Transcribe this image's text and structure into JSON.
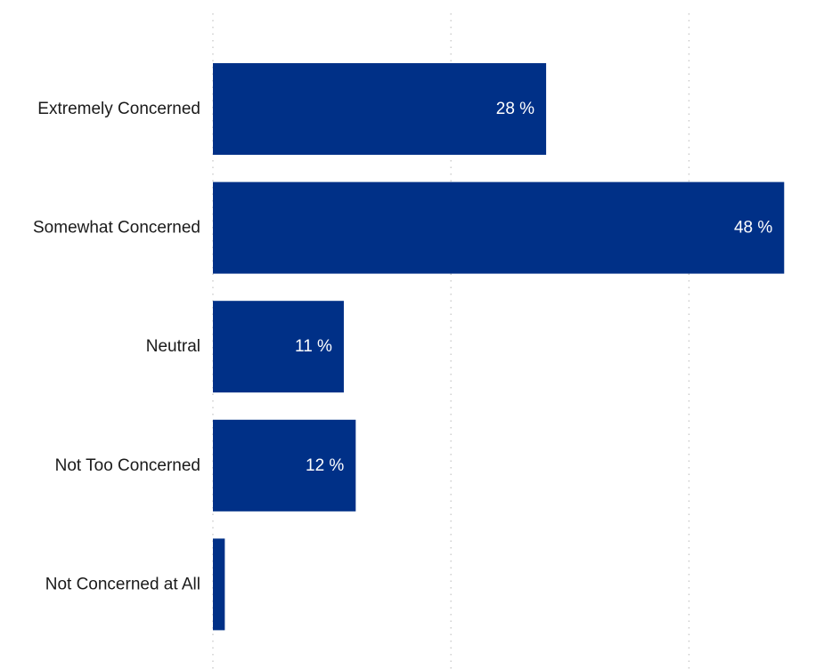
{
  "chart_data": {
    "type": "bar",
    "orientation": "horizontal",
    "title": "",
    "xlabel": "",
    "ylabel": "",
    "categories": [
      "Extremely Concerned",
      "Somewhat Concerned",
      "Neutral",
      "Not Too Concerned",
      "Not Concerned at All"
    ],
    "values": [
      28,
      48,
      11,
      12,
      1
    ],
    "value_labels": [
      "28 %",
      "48 %",
      "11 %",
      "12 %",
      ""
    ],
    "xlim": [
      0,
      50
    ],
    "grid": true,
    "gridlines_at": [
      0,
      20,
      40
    ],
    "bar_color": "#003087",
    "value_label_color": "#ffffff"
  }
}
